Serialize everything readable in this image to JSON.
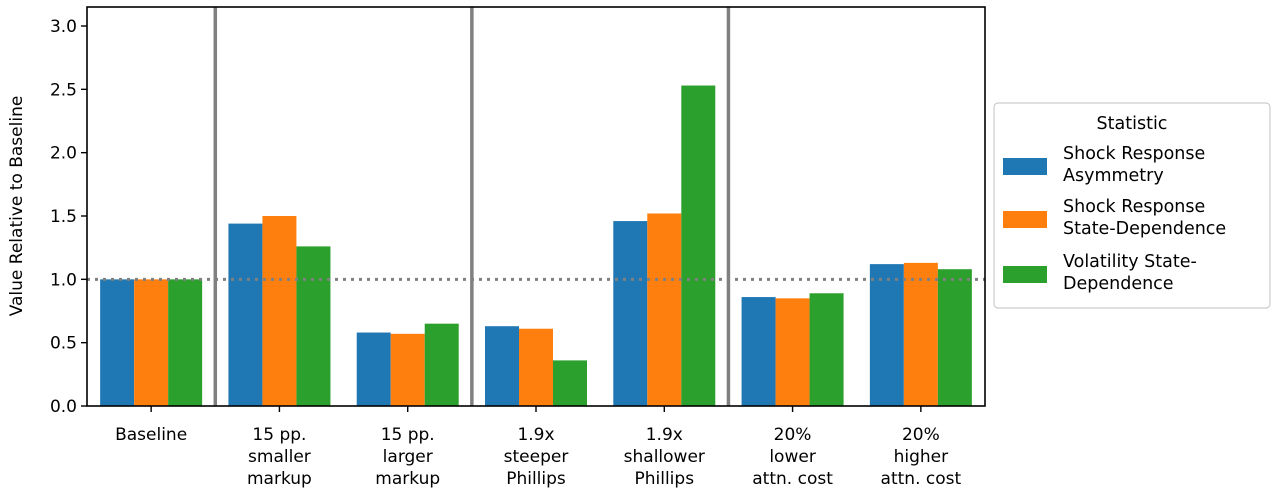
{
  "chart_data": {
    "type": "bar",
    "title": "",
    "xlabel": "",
    "ylabel": "Value Relative to Baseline",
    "ylim": [
      0,
      3.15
    ],
    "yticks": [
      "0.0",
      "0.5",
      "1.0",
      "1.5",
      "2.0",
      "2.5",
      "3.0"
    ],
    "categories": [
      [
        "Baseline"
      ],
      [
        "15 pp.",
        "smaller",
        "markup"
      ],
      [
        "15 pp.",
        "larger",
        "markup"
      ],
      [
        "1.9x",
        "steeper",
        "Phillips"
      ],
      [
        "1.9x",
        "shallower",
        "Phillips"
      ],
      [
        "20%",
        "lower",
        "attn. cost"
      ],
      [
        "20%",
        "higher",
        "attn. cost"
      ]
    ],
    "series": [
      {
        "name": [
          "Shock Response",
          "Asymmetry"
        ],
        "color": "#1f77b4",
        "values": [
          1.0,
          1.44,
          0.58,
          0.63,
          1.46,
          0.86,
          1.12
        ]
      },
      {
        "name": [
          "Shock Response",
          "State-Dependence"
        ],
        "color": "#ff7f0e",
        "values": [
          1.0,
          1.5,
          0.57,
          0.61,
          1.52,
          0.85,
          1.13
        ]
      },
      {
        "name": [
          "Volatility State-",
          "Dependence"
        ],
        "color": "#2ca02c",
        "values": [
          1.0,
          1.26,
          0.65,
          0.36,
          2.53,
          0.89,
          1.08
        ]
      }
    ],
    "reference_line": {
      "y": 1.0,
      "style": "dotted",
      "color": "#808080"
    },
    "group_separators_after": [
      0,
      2,
      4
    ],
    "separator_color": "#808080",
    "legend": {
      "title": "Statistic",
      "placement": "right-outside"
    },
    "grid": false
  }
}
